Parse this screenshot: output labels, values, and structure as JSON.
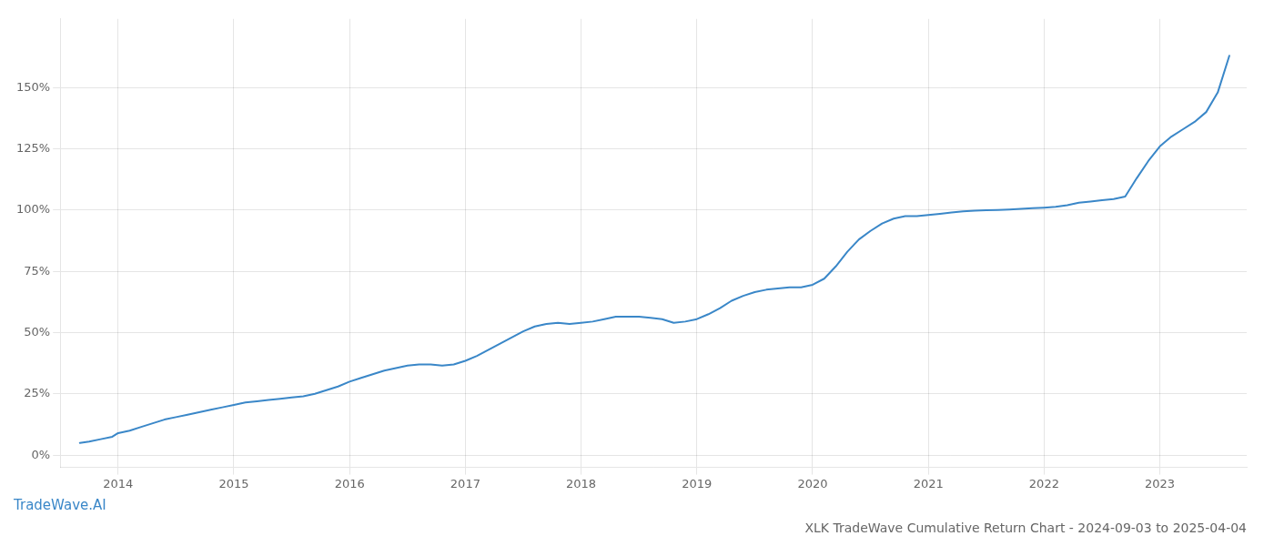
{
  "chart_data": {
    "type": "line",
    "title": "XLK TradeWave Cumulative Return Chart - 2024-09-03 to 2025-04-04",
    "annotations": [
      "TradeWave.AI"
    ],
    "color": "#3a87c8",
    "grid": true,
    "x": [
      2013.67,
      2013.75,
      2013.85,
      2013.95,
      2014.0,
      2014.1,
      2014.2,
      2014.3,
      2014.4,
      2014.5,
      2014.6,
      2014.7,
      2014.8,
      2014.9,
      2015.0,
      2015.1,
      2015.2,
      2015.3,
      2015.4,
      2015.5,
      2015.6,
      2015.7,
      2015.8,
      2015.9,
      2016.0,
      2016.1,
      2016.2,
      2016.3,
      2016.4,
      2016.5,
      2016.6,
      2016.7,
      2016.8,
      2016.9,
      2017.0,
      2017.1,
      2017.2,
      2017.3,
      2017.4,
      2017.5,
      2017.6,
      2017.7,
      2017.8,
      2017.9,
      2018.0,
      2018.1,
      2018.2,
      2018.3,
      2018.4,
      2018.5,
      2018.6,
      2018.7,
      2018.8,
      2018.9,
      2019.0,
      2019.1,
      2019.2,
      2019.3,
      2019.4,
      2019.5,
      2019.6,
      2019.7,
      2019.8,
      2019.9,
      2020.0,
      2020.1,
      2020.2,
      2020.3,
      2020.4,
      2020.5,
      2020.6,
      2020.7,
      2020.8,
      2020.9,
      2021.0,
      2021.1,
      2021.2,
      2021.3,
      2021.4,
      2021.5,
      2021.6,
      2021.7,
      2021.8,
      2021.9,
      2022.0,
      2022.1,
      2022.2,
      2022.3,
      2022.4,
      2022.5,
      2022.6,
      2022.7,
      2022.8,
      2022.9,
      2023.0,
      2023.1,
      2023.2,
      2023.3,
      2023.4,
      2023.5,
      2023.6
    ],
    "values": [
      5.0,
      5.5,
      6.5,
      7.5,
      9.0,
      10.0,
      11.5,
      13.0,
      14.5,
      15.5,
      16.5,
      17.5,
      18.5,
      19.5,
      20.5,
      21.5,
      22.0,
      22.5,
      23.0,
      23.5,
      24.0,
      25.0,
      26.5,
      28.0,
      30.0,
      31.5,
      33.0,
      34.5,
      35.5,
      36.5,
      37.0,
      37.0,
      36.5,
      37.0,
      38.5,
      40.5,
      43.0,
      45.5,
      48.0,
      50.5,
      52.5,
      53.5,
      54.0,
      53.5,
      54.0,
      54.5,
      55.5,
      56.5,
      56.5,
      56.5,
      56.0,
      55.5,
      54.0,
      54.5,
      55.5,
      57.5,
      60.0,
      63.0,
      65.0,
      66.5,
      67.5,
      68.0,
      68.5,
      68.5,
      69.5,
      72.0,
      77.0,
      83.0,
      88.0,
      91.5,
      94.5,
      96.5,
      97.5,
      97.5,
      98.0,
      98.5,
      99.0,
      99.5,
      99.8,
      99.9,
      100.0,
      100.2,
      100.5,
      100.8,
      101.0,
      101.3,
      102.0,
      103.0,
      103.5,
      104.0,
      104.5,
      105.5,
      113.0,
      120.0,
      126.0,
      130.0,
      133.0,
      136.0,
      140.0,
      148.0,
      163.0
    ],
    "xlim": [
      2013.5,
      2023.75
    ],
    "xticks": [
      2014,
      2015,
      2016,
      2017,
      2018,
      2019,
      2020,
      2021,
      2022,
      2023
    ],
    "ylim": [
      -5,
      178
    ],
    "yticks": [
      {
        "value": 0,
        "label": "0%"
      },
      {
        "value": 25,
        "label": "25%"
      },
      {
        "value": 50,
        "label": "50%"
      },
      {
        "value": 75,
        "label": "75%"
      },
      {
        "value": 100,
        "label": "100%"
      },
      {
        "value": 125,
        "label": "125%"
      },
      {
        "value": 150,
        "label": "150%"
      }
    ]
  }
}
